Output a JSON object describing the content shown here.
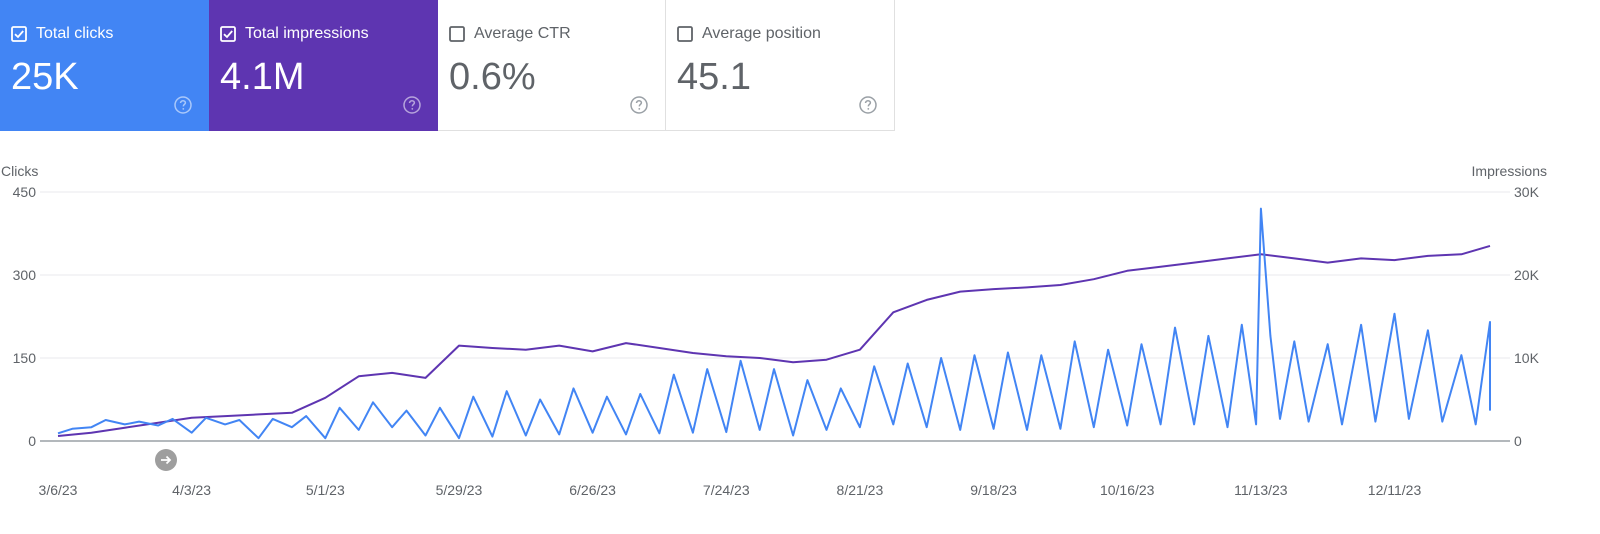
{
  "cards": [
    {
      "label": "Total clicks",
      "value": "25K",
      "checked": true
    },
    {
      "label": "Total impressions",
      "value": "4.1M",
      "checked": true
    },
    {
      "label": "Average CTR",
      "value": "0.6%",
      "checked": false
    },
    {
      "label": "Average position",
      "value": "45.1",
      "checked": false
    }
  ],
  "colors": {
    "clicks": "#4285f4",
    "impressions": "#5e35b1",
    "grid": "#e8eaed",
    "baseline": "#9aa0a6"
  },
  "chart_data": {
    "type": "line",
    "left_axis": {
      "title": "Clicks",
      "ticks": [
        "450",
        "300",
        "150",
        "0"
      ],
      "range": [
        0,
        450
      ]
    },
    "right_axis": {
      "title": "Impressions",
      "ticks": [
        "30K",
        "20K",
        "10K",
        "0"
      ],
      "range": [
        0,
        30000
      ]
    },
    "x_tick_labels": [
      "3/6/23",
      "4/3/23",
      "5/1/23",
      "5/29/23",
      "6/26/23",
      "7/24/23",
      "8/21/23",
      "9/18/23",
      "10/16/23",
      "11/13/23",
      "12/11/23"
    ],
    "x_range": [
      "3/6/23",
      "12/31/23"
    ],
    "grid": true,
    "series": [
      {
        "axis": "left",
        "points": [
          [
            "3/6/23",
            14
          ],
          [
            "3/9/23",
            22
          ],
          [
            "3/13/23",
            25
          ],
          [
            "3/16/23",
            38
          ],
          [
            "3/20/23",
            30
          ],
          [
            "3/23/23",
            35
          ],
          [
            "3/27/23",
            28
          ],
          [
            "3/30/23",
            40
          ],
          [
            "4/3/23",
            15
          ],
          [
            "4/6/23",
            42
          ],
          [
            "4/10/23",
            30
          ],
          [
            "4/13/23",
            38
          ],
          [
            "4/17/23",
            5
          ],
          [
            "4/20/23",
            40
          ],
          [
            "4/24/23",
            25
          ],
          [
            "4/27/23",
            45
          ],
          [
            "5/1/23",
            5
          ],
          [
            "5/4/23",
            60
          ],
          [
            "5/8/23",
            20
          ],
          [
            "5/11/23",
            70
          ],
          [
            "5/15/23",
            25
          ],
          [
            "5/18/23",
            55
          ],
          [
            "5/22/23",
            10
          ],
          [
            "5/25/23",
            60
          ],
          [
            "5/29/23",
            5
          ],
          [
            "6/1/23",
            80
          ],
          [
            "6/5/23",
            8
          ],
          [
            "6/8/23",
            90
          ],
          [
            "6/12/23",
            10
          ],
          [
            "6/15/23",
            75
          ],
          [
            "6/19/23",
            12
          ],
          [
            "6/22/23",
            95
          ],
          [
            "6/26/23",
            15
          ],
          [
            "6/29/23",
            80
          ],
          [
            "7/3/23",
            12
          ],
          [
            "7/6/23",
            85
          ],
          [
            "7/10/23",
            14
          ],
          [
            "7/13/23",
            120
          ],
          [
            "7/17/23",
            15
          ],
          [
            "7/20/23",
            130
          ],
          [
            "7/24/23",
            16
          ],
          [
            "7/27/23",
            145
          ],
          [
            "7/31/23",
            20
          ],
          [
            "8/3/23",
            130
          ],
          [
            "8/7/23",
            10
          ],
          [
            "8/10/23",
            110
          ],
          [
            "8/14/23",
            20
          ],
          [
            "8/17/23",
            95
          ],
          [
            "8/21/23",
            25
          ],
          [
            "8/24/23",
            135
          ],
          [
            "8/28/23",
            30
          ],
          [
            "8/31/23",
            140
          ],
          [
            "9/4/23",
            25
          ],
          [
            "9/7/23",
            150
          ],
          [
            "9/11/23",
            20
          ],
          [
            "9/14/23",
            155
          ],
          [
            "9/18/23",
            22
          ],
          [
            "9/21/23",
            160
          ],
          [
            "9/25/23",
            20
          ],
          [
            "9/28/23",
            155
          ],
          [
            "10/2/23",
            22
          ],
          [
            "10/5/23",
            180
          ],
          [
            "10/9/23",
            25
          ],
          [
            "10/12/23",
            165
          ],
          [
            "10/16/23",
            28
          ],
          [
            "10/19/23",
            175
          ],
          [
            "10/23/23",
            30
          ],
          [
            "10/26/23",
            205
          ],
          [
            "10/30/23",
            30
          ],
          [
            "11/2/23",
            190
          ],
          [
            "11/6/23",
            25
          ],
          [
            "11/9/23",
            210
          ],
          [
            "11/12/23",
            30
          ],
          [
            "11/13/23",
            420
          ],
          [
            "11/15/23",
            190
          ],
          [
            "11/17/23",
            40
          ],
          [
            "11/20/23",
            180
          ],
          [
            "11/23/23",
            35
          ],
          [
            "11/27/23",
            175
          ],
          [
            "11/30/23",
            30
          ],
          [
            "12/4/23",
            210
          ],
          [
            "12/7/23",
            35
          ],
          [
            "12/11/23",
            230
          ],
          [
            "12/14/23",
            40
          ],
          [
            "12/18/23",
            200
          ],
          [
            "12/21/23",
            35
          ],
          [
            "12/25/23",
            155
          ],
          [
            "12/28/23",
            30
          ],
          [
            "12/31/23",
            215
          ],
          [
            "12/31/23",
            55
          ]
        ]
      },
      {
        "axis": "right",
        "points": [
          [
            "3/6/23",
            600
          ],
          [
            "3/13/23",
            1000
          ],
          [
            "3/20/23",
            1600
          ],
          [
            "3/27/23",
            2200
          ],
          [
            "4/3/23",
            2800
          ],
          [
            "4/10/23",
            3000
          ],
          [
            "4/17/23",
            3200
          ],
          [
            "4/24/23",
            3400
          ],
          [
            "5/1/23",
            5200
          ],
          [
            "5/8/23",
            7800
          ],
          [
            "5/15/23",
            8200
          ],
          [
            "5/22/23",
            7600
          ],
          [
            "5/29/23",
            11500
          ],
          [
            "6/5/23",
            11200
          ],
          [
            "6/12/23",
            11000
          ],
          [
            "6/19/23",
            11500
          ],
          [
            "6/26/23",
            10800
          ],
          [
            "7/3/23",
            11800
          ],
          [
            "7/10/23",
            11200
          ],
          [
            "7/17/23",
            10600
          ],
          [
            "7/24/23",
            10200
          ],
          [
            "7/31/23",
            10000
          ],
          [
            "8/7/23",
            9500
          ],
          [
            "8/14/23",
            9800
          ],
          [
            "8/21/23",
            11000
          ],
          [
            "8/28/23",
            15500
          ],
          [
            "9/4/23",
            17000
          ],
          [
            "9/11/23",
            18000
          ],
          [
            "9/18/23",
            18300
          ],
          [
            "9/25/23",
            18500
          ],
          [
            "10/2/23",
            18800
          ],
          [
            "10/9/23",
            19500
          ],
          [
            "10/16/23",
            20500
          ],
          [
            "10/23/23",
            21000
          ],
          [
            "10/30/23",
            21500
          ],
          [
            "11/6/23",
            22000
          ],
          [
            "11/13/23",
            22500
          ],
          [
            "11/20/23",
            22000
          ],
          [
            "11/27/23",
            21500
          ],
          [
            "12/4/23",
            22000
          ],
          [
            "12/11/23",
            21800
          ],
          [
            "12/18/23",
            22300
          ],
          [
            "12/25/23",
            22500
          ],
          [
            "12/31/23",
            23500
          ]
        ]
      }
    ]
  }
}
